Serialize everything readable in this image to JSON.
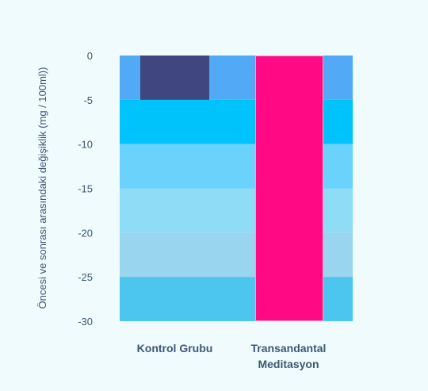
{
  "chart_data": {
    "type": "bar",
    "categories": [
      "Kontrol Grubu",
      "Transandantal Meditasyon"
    ],
    "category_label_lines": [
      [
        "Kontrol Grubu"
      ],
      [
        "Transandantal",
        "Meditasyon"
      ]
    ],
    "values": [
      -5,
      -30
    ],
    "bar_colors": [
      "#3f4680",
      "#ff0a84"
    ],
    "ylabel": "Öncesi ve sonrası arasındaki değişiklik (mg / 100ml))",
    "ylim": [
      -30,
      0
    ],
    "yticks": [
      0,
      -5,
      -10,
      -15,
      -20,
      -25,
      -30
    ],
    "grid": false,
    "background_bands": [
      {
        "from": 0,
        "to": -5,
        "color": "#52a9f5"
      },
      {
        "from": -5,
        "to": -10,
        "color": "#00c3fb"
      },
      {
        "from": -10,
        "to": -15,
        "color": "#6ad2fb"
      },
      {
        "from": -15,
        "to": -20,
        "color": "#8fdcf7"
      },
      {
        "from": -20,
        "to": -25,
        "color": "#99d5ef"
      },
      {
        "from": -25,
        "to": -30,
        "color": "#4cc5ef"
      }
    ],
    "axis_text_color": "#3f5870",
    "page_background": "#effbfd"
  }
}
